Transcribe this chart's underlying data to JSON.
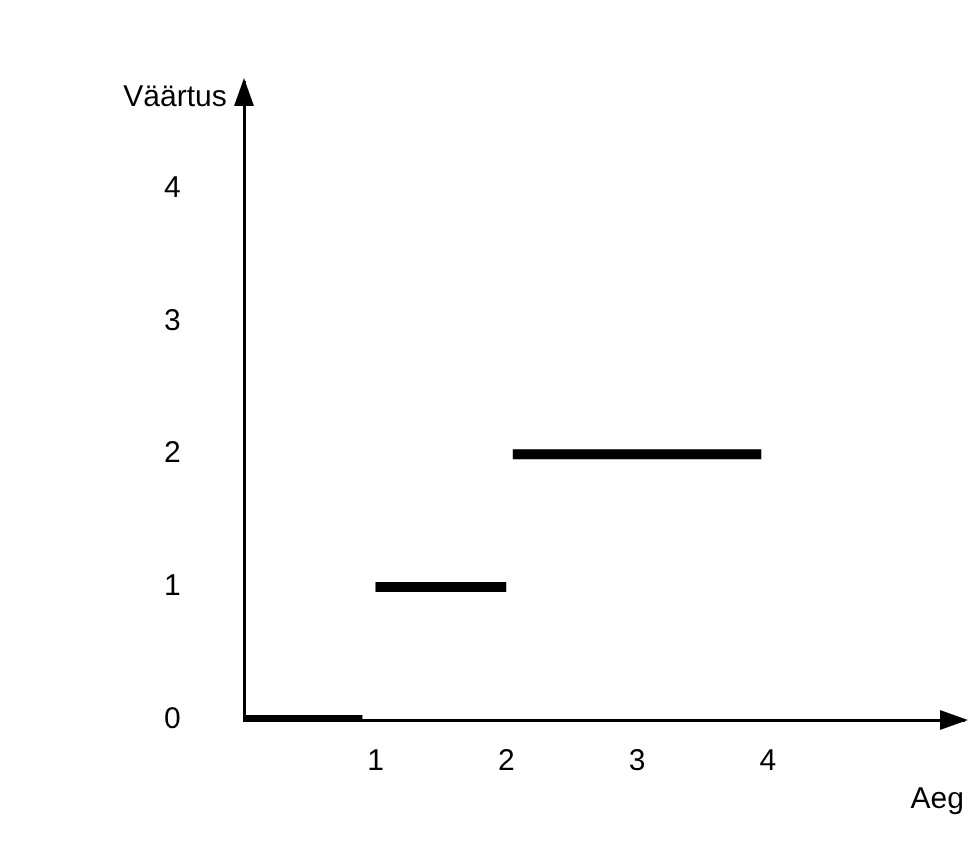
{
  "chart_data": {
    "type": "line",
    "xlabel": "Aeg",
    "ylabel": "Väärtus",
    "xlim": [
      0,
      5.5
    ],
    "ylim": [
      0,
      4.8
    ],
    "xticks": [
      1,
      2,
      3,
      4
    ],
    "yticks": [
      0,
      1,
      2,
      3,
      4
    ],
    "grid": false,
    "legend": false,
    "marker": "none",
    "line_style": "solid",
    "series": [
      {
        "color": "#000000",
        "x": [
          0,
          0.9
        ],
        "values": [
          0,
          0
        ]
      },
      {
        "color": "#000000",
        "x": [
          1,
          2
        ],
        "values": [
          1,
          1
        ]
      },
      {
        "color": "#000000",
        "x": [
          2.05,
          3.95
        ],
        "values": [
          2,
          2
        ]
      }
    ]
  }
}
